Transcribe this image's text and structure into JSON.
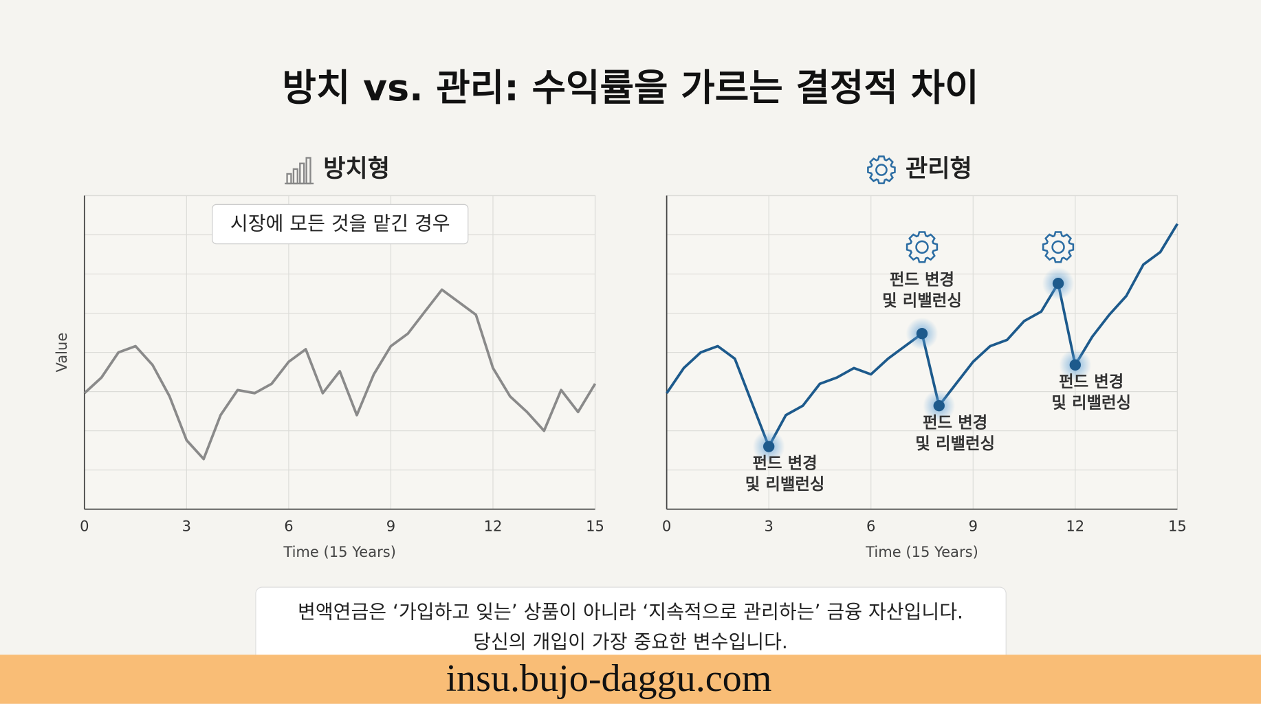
{
  "title": "방치 vs. 관리: 수익률을 가르는 결정적 차이",
  "caption": [
    "변액연금은 ‘가입하고 잊는’ 상품이 아니라 ‘지속적으로 관리하는’ 금융 자산입니다.",
    "당신의 개입이 가장 중요한 변수입니다."
  ],
  "footer": "insu.bujo-daggu.com",
  "chart_data": [
    {
      "type": "line",
      "title": "방치형",
      "y_label": "Value",
      "x_label": "Time (15 Years)",
      "note": "시장에 모든 것을 맡긴 경우",
      "xlim": [
        0,
        15
      ],
      "xticks": [
        0,
        3,
        6,
        9,
        12,
        15
      ],
      "ylim": [
        0,
        100
      ],
      "ygrid": [
        12.5,
        25,
        37.5,
        50,
        62.5,
        75,
        87.5,
        100
      ],
      "grid": true,
      "x": [
        0,
        0.5,
        1,
        1.5,
        2,
        2.5,
        3,
        3.5,
        4,
        4.5,
        5,
        5.5,
        6,
        6.5,
        7,
        7.5,
        8,
        8.5,
        9,
        9.5,
        10,
        10.5,
        11,
        11.5,
        12,
        12.5,
        13,
        13.5,
        14,
        14.5,
        15
      ],
      "series": [
        {
          "color": "#8a8a8a",
          "values": [
            37,
            42,
            50,
            52,
            46,
            36,
            22,
            16,
            30,
            38,
            37,
            40,
            47,
            51,
            37,
            44,
            30,
            43,
            52,
            56,
            63,
            70,
            66,
            62,
            45,
            36,
            31,
            25,
            38,
            31,
            40
          ]
        }
      ]
    },
    {
      "type": "line",
      "title": "관리형",
      "x_label": "Time (15 Years)",
      "xlim": [
        0,
        15
      ],
      "xticks": [
        0,
        3,
        6,
        9,
        12,
        15
      ],
      "ylim": [
        0,
        100
      ],
      "ygrid": [
        12.5,
        25,
        37.5,
        50,
        62.5,
        75,
        87.5,
        100
      ],
      "grid": true,
      "x": [
        0,
        0.5,
        1,
        1.5,
        2,
        2.5,
        3,
        3.5,
        4,
        4.5,
        5,
        5.5,
        6,
        6.5,
        7,
        7.5,
        8,
        8.5,
        9,
        9.5,
        10,
        10.5,
        11,
        11.5,
        12,
        12.5,
        13,
        13.5,
        14,
        14.5,
        15
      ],
      "series": [
        {
          "color": "#1d5a8c",
          "values": [
            37,
            45,
            50,
            52,
            48,
            34,
            20,
            30,
            33,
            40,
            42,
            45,
            43,
            48,
            52,
            56,
            33,
            40,
            47,
            52,
            54,
            60,
            63,
            72,
            46,
            55,
            62,
            68,
            78,
            82,
            91
          ]
        }
      ],
      "highlights": [
        {
          "x": 3,
          "label": [
            "펀드 변경",
            "및 리밸런싱"
          ]
        },
        {
          "x": 7.5,
          "label": [
            "펀드 변경",
            "및 리밸런싱"
          ],
          "gear": true
        },
        {
          "x": 8,
          "label": [
            "펀드 변경",
            "및 리밸런싱"
          ]
        },
        {
          "x": 11.5,
          "gear": true
        },
        {
          "x": 12,
          "label": [
            "펀드 변경",
            "및 리밸런싱"
          ]
        }
      ]
    }
  ]
}
